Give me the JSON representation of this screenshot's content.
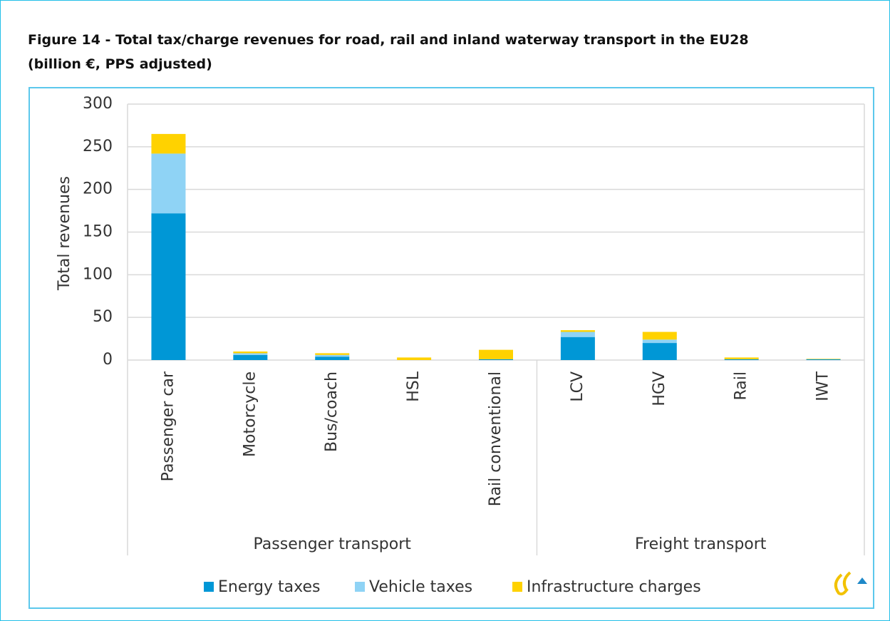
{
  "chart_data": {
    "type": "stacked_bar",
    "title": "Figure 14 - Total tax/charge revenues for road, rail and inland waterway transport in the EU28",
    "subtitle": "(billion €, PPS adjusted)",
    "y_label": "Total revenues",
    "groups": [
      {
        "label": "Passenger transport",
        "categories": [
          "Passenger car",
          "Motorcycle",
          "Bus/coach",
          "HSL",
          "Rail conventional"
        ]
      },
      {
        "label": "Freight transport",
        "categories": [
          "LCV",
          "HGV",
          "Rail",
          "IWT"
        ]
      }
    ],
    "series": [
      {
        "name": "Energy taxes",
        "color": "#0097d6",
        "values": [
          172,
          6,
          4,
          0,
          1,
          27,
          20,
          1,
          1
        ]
      },
      {
        "name": "Vehicle taxes",
        "color": "#8fd3f5",
        "values": [
          70,
          2,
          2,
          0,
          0,
          6,
          4,
          0,
          0
        ]
      },
      {
        "name": "Infrastructure charges",
        "color": "#ffd200",
        "values": [
          23,
          2,
          2,
          3,
          11,
          2,
          9,
          2,
          0.5
        ]
      }
    ],
    "ylim": [
      0,
      300
    ],
    "yticks": [
      0,
      50,
      100,
      150,
      200,
      250,
      300
    ],
    "grid": true,
    "legend": "bottom"
  }
}
